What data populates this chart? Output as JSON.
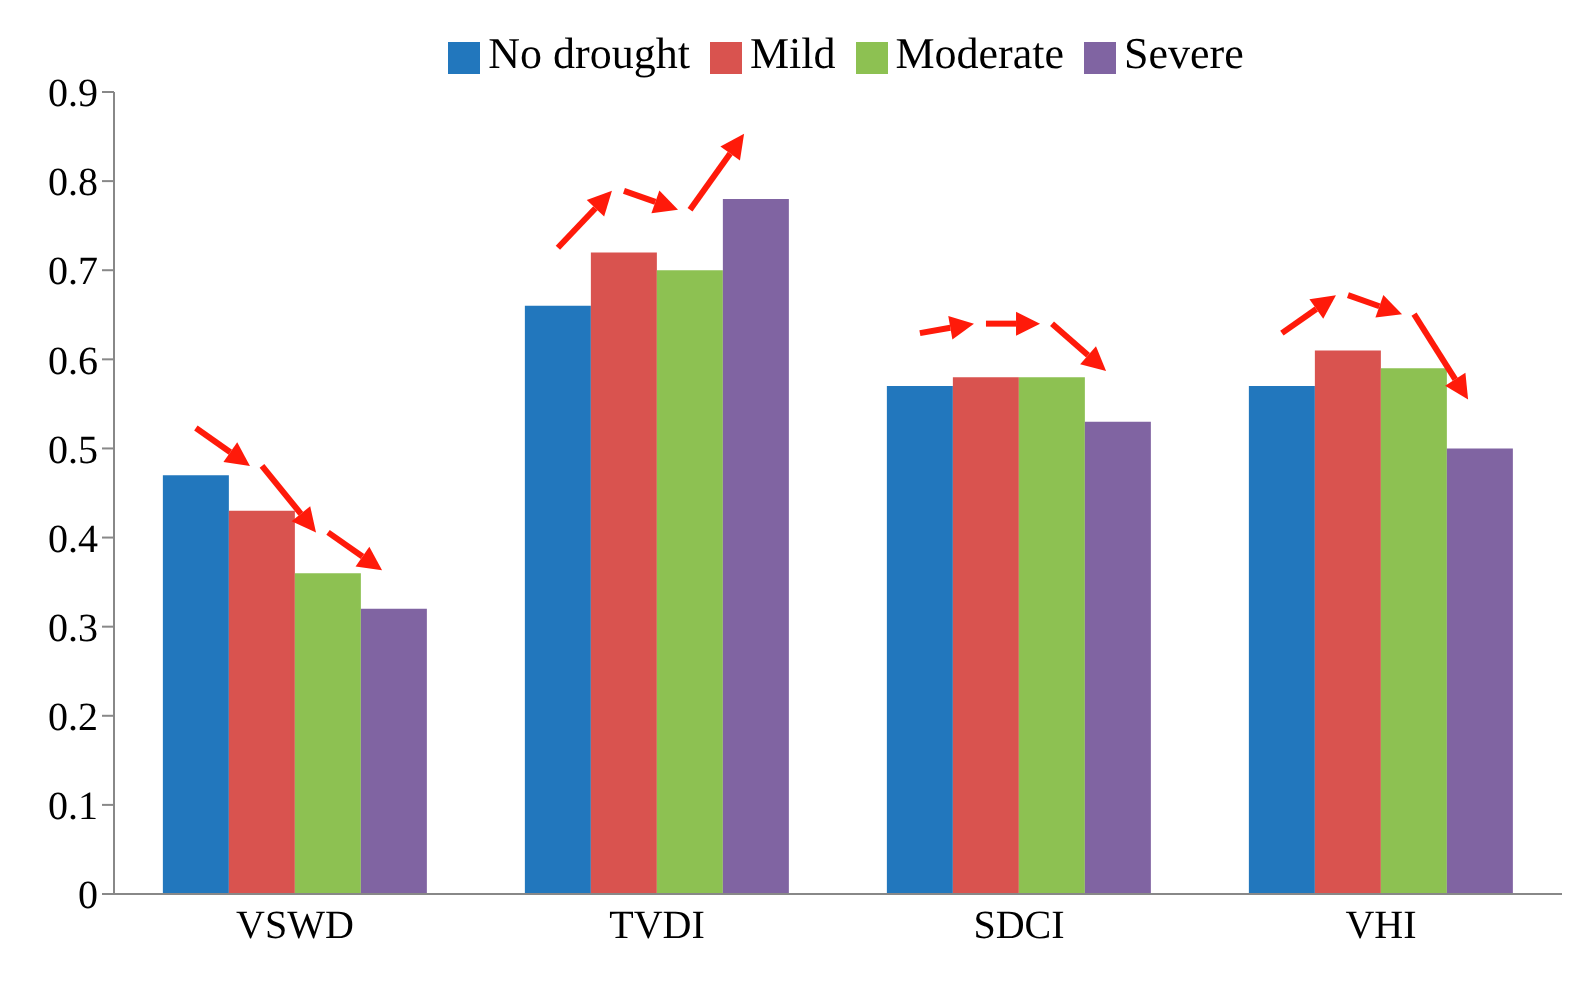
{
  "chart_data": {
    "type": "bar",
    "categories": [
      "VSWD",
      "TVDI",
      "SDCI",
      "VHI"
    ],
    "series": [
      {
        "name": "No drought",
        "color": "#2277bd",
        "values": [
          0.47,
          0.66,
          0.57,
          0.57
        ]
      },
      {
        "name": "Mild",
        "color": "#d9534f",
        "values": [
          0.43,
          0.72,
          0.58,
          0.61
        ]
      },
      {
        "name": "Moderate",
        "color": "#8dc152",
        "values": [
          0.36,
          0.7,
          0.58,
          0.59
        ]
      },
      {
        "name": "Severe",
        "color": "#8064a2",
        "values": [
          0.32,
          0.78,
          0.53,
          0.5
        ]
      }
    ],
    "ylim": [
      0,
      0.9
    ],
    "yticks": [
      0,
      0.1,
      0.2,
      0.3,
      0.4,
      0.5,
      0.6,
      0.7,
      0.8,
      0.9
    ],
    "grid": false,
    "legend": "top"
  }
}
